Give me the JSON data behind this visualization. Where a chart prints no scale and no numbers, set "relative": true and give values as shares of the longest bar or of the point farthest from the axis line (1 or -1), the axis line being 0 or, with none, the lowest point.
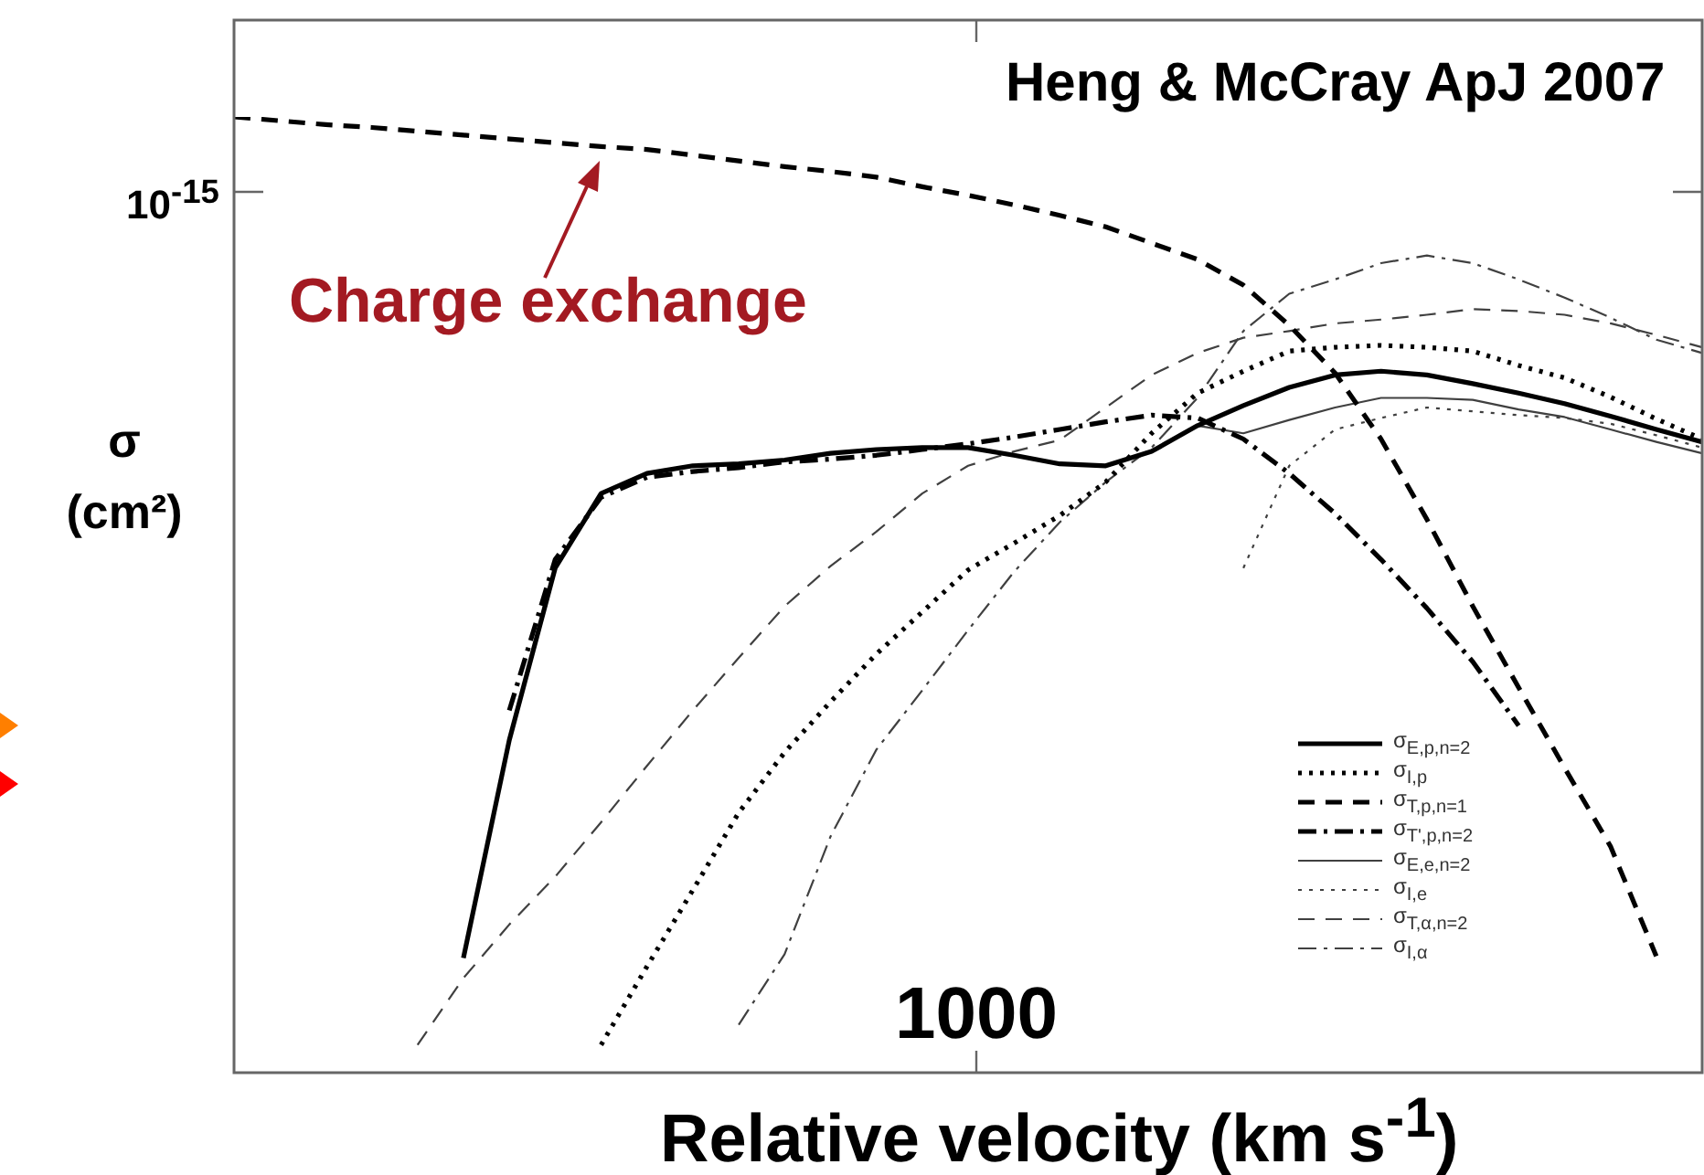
{
  "chart_data": {
    "type": "line",
    "relative": true,
    "xlabel": "Relative velocity (km s$^{-1}$)",
    "ylabel": "σ (cm²)",
    "legend": "bottom right",
    "marker": "none",
    "annotations": [
      "Heng & McCray ApJ 2007",
      "Charge exchange",
      "1000",
      "10$^{-15}$"
    ],
    "categories": [
      null,
      null,
      null,
      null,
      null,
      null,
      null,
      null,
      null,
      null,
      null,
      null,
      null,
      null,
      null,
      null,
      null,
      null,
      null,
      null,
      null,
      null,
      null,
      null,
      null,
      null,
      null,
      null,
      null,
      null,
      null,
      null,
      null
    ],
    "series": [
      {
        "name": "σ$_{E,p,n=2}$",
        "color": "#000000",
        "line_style": "solid",
        "values": [
          null,
          null,
          null,
          null,
          null,
          0.12,
          0.348,
          0.528,
          0.606,
          0.627,
          0.635,
          0.637,
          0.641,
          0.648,
          0.652,
          0.654,
          0.654,
          0.646,
          0.637,
          0.635,
          0.65,
          0.677,
          0.698,
          0.717,
          0.73,
          0.734,
          0.73,
          0.721,
          0.711,
          0.7,
          0.687,
          0.673,
          0.66
        ]
      },
      {
        "name": "σ$_{I,p}$",
        "color": "#000000",
        "line_style": "dotted",
        "values": [
          null,
          null,
          null,
          null,
          null,
          null,
          null,
          null,
          0.029,
          0.111,
          0.191,
          0.272,
          0.335,
          0.388,
          0.438,
          0.482,
          0.526,
          0.554,
          0.583,
          0.618,
          0.669,
          0.711,
          0.734,
          0.755,
          0.759,
          0.761,
          0.759,
          0.755,
          0.74,
          0.727,
          0.707,
          0.684,
          0.663
        ]
      },
      {
        "name": "σ$_{T,p,n=1}$",
        "color": "#000000",
        "line_style": "dashed",
        "values": [
          1,
          0.996,
          0.992,
          0.989,
          0.985,
          0.981,
          0.977,
          0.973,
          0.969,
          0.966,
          0.96,
          0.954,
          0.948,
          0.943,
          0.937,
          0.927,
          0.918,
          0.908,
          0.897,
          0.885,
          0.868,
          0.851,
          0.824,
          0.782,
          0.732,
          0.663,
          0.579,
          0.488,
          0.403,
          0.319,
          0.237,
          0.122,
          null
        ]
      },
      {
        "name": "σ$_{T',p,n=2}$",
        "color": "#000000",
        "line_style": "dashdot",
        "values": [
          null,
          null,
          null,
          null,
          null,
          null,
          0.379,
          0.537,
          0.602,
          0.623,
          0.629,
          0.633,
          0.639,
          0.642,
          0.646,
          0.652,
          0.658,
          0.665,
          0.673,
          0.681,
          0.688,
          0.685,
          0.663,
          0.627,
          0.585,
          0.537,
          0.486,
          0.43,
          0.363,
          null,
          null,
          null,
          null
        ]
      },
      {
        "name": "σ$_{E,e,n=2}$",
        "color": "#404040",
        "line_style": "solid",
        "values": [
          null,
          null,
          null,
          null,
          null,
          null,
          null,
          null,
          null,
          null,
          null,
          null,
          null,
          null,
          null,
          null,
          null,
          null,
          null,
          null,
          null,
          0.677,
          0.669,
          0.683,
          0.696,
          0.706,
          0.706,
          0.704,
          0.694,
          0.686,
          0.673,
          0.66,
          0.648
        ]
      },
      {
        "name": "σ$_{I,e}$",
        "color": "#404040",
        "line_style": "dotted",
        "values": [
          null,
          null,
          null,
          null,
          null,
          null,
          null,
          null,
          null,
          null,
          null,
          null,
          null,
          null,
          null,
          null,
          null,
          null,
          null,
          null,
          null,
          null,
          0.528,
          0.635,
          0.673,
          0.685,
          0.696,
          0.692,
          0.688,
          0.685,
          0.679,
          0.667,
          0.654
        ]
      },
      {
        "name": "σ$_{T,α,n=2}$",
        "color": "#404040",
        "line_style": "dashed",
        "values": [
          null,
          null,
          null,
          null,
          0.029,
          0.099,
          0.155,
          0.205,
          0.262,
          0.321,
          0.379,
          0.434,
          0.488,
          0.53,
          0.566,
          0.606,
          0.635,
          0.65,
          0.662,
          0.696,
          0.73,
          0.753,
          0.769,
          0.776,
          0.784,
          0.788,
          0.793,
          0.799,
          0.797,
          0.793,
          0.784,
          0.772,
          0.759
        ]
      },
      {
        "name": "σ$_{I,α}$",
        "color": "#404040",
        "line_style": "dashdot",
        "values": [
          null,
          null,
          null,
          null,
          null,
          null,
          null,
          null,
          null,
          null,
          null,
          0.05,
          0.124,
          0.247,
          0.338,
          0.4,
          0.463,
          0.524,
          0.576,
          0.618,
          0.654,
          0.706,
          0.776,
          0.815,
          0.83,
          0.847,
          0.855,
          0.847,
          0.83,
          0.811,
          0.79,
          0.767,
          0.753
        ]
      }
    ]
  }
}
